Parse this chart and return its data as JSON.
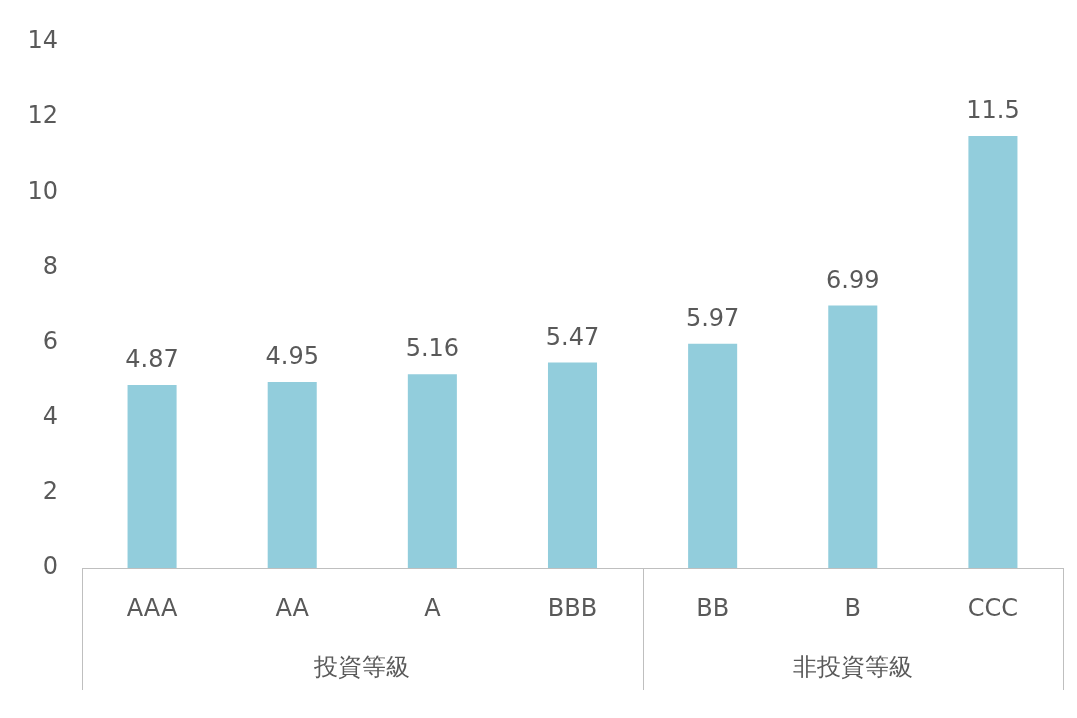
{
  "chart_data": {
    "type": "bar",
    "categories": [
      "AAA",
      "AA",
      "A",
      "BBB",
      "BB",
      "B",
      "CCC"
    ],
    "values": [
      4.87,
      4.95,
      5.16,
      5.47,
      5.97,
      6.99,
      11.5
    ],
    "color": "#92cddc",
    "ylim": [
      0,
      14
    ],
    "yticks": [
      0,
      2,
      4,
      6,
      8,
      10,
      12,
      14
    ],
    "data_labels": true,
    "annotations": [
      "投資等級",
      "非投資等級"
    ]
  }
}
